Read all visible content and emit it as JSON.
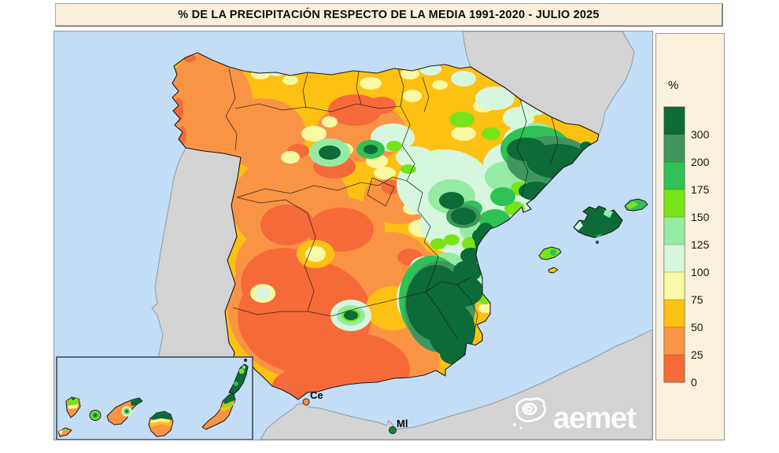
{
  "title": {
    "text": "% DE LA PRECIPITACIÓN RESPECTO DE LA MEDIA 1991-2020 - JULIO 2025"
  },
  "legend": {
    "unit_label": "%",
    "bands": [
      {
        "label": "300",
        "color": "#0c6b38"
      },
      {
        "label": "200",
        "color": "#41965e"
      },
      {
        "label": "175",
        "color": "#2fc156"
      },
      {
        "label": "150",
        "color": "#79e319"
      },
      {
        "label": "125",
        "color": "#95eba3"
      },
      {
        "label": "100",
        "color": "#d6f6dd"
      },
      {
        "label": "75",
        "color": "#f9f8a3"
      },
      {
        "label": "50",
        "color": "#fdc113"
      },
      {
        "label": "25",
        "color": "#fa9445"
      },
      {
        "label": "0",
        "color": "#f66a3a"
      }
    ]
  },
  "map": {
    "colors": {
      "sea": "#c3ddf6",
      "foreign_land": "#d3d3d3"
    },
    "markers": [
      {
        "id": "ceuta",
        "label": "Ce",
        "color": "#f5914a"
      },
      {
        "id": "melilla",
        "label": "Ml",
        "color": "#1f8040"
      }
    ],
    "logo_text": "aemet"
  }
}
